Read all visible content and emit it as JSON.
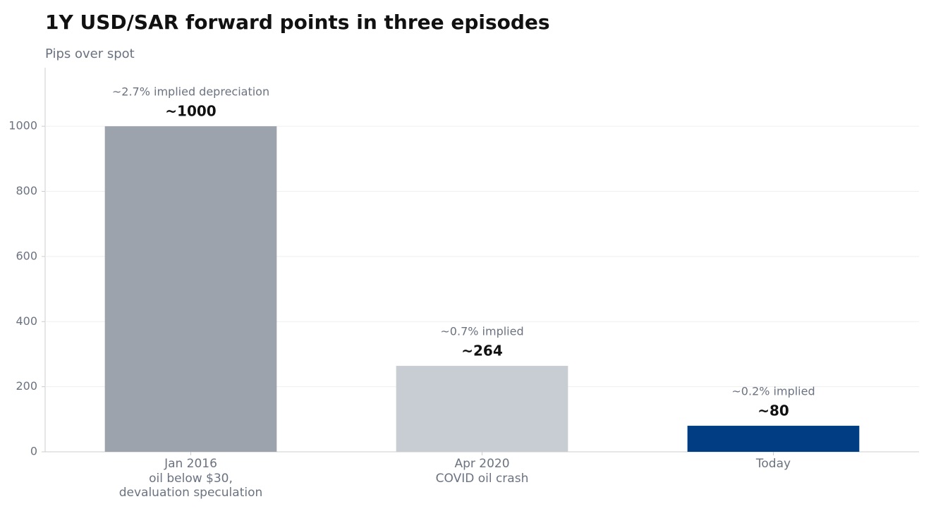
{
  "chart_data": {
    "type": "bar",
    "title": "1Y USD/SAR forward points in three episodes",
    "subtitle": "Pips over spot",
    "categories": [
      "Jan 2016\noil below $30,\ndevaluation speculation",
      "Apr 2020\nCOVID oil crash",
      "Today"
    ],
    "values": [
      1000,
      264,
      80
    ],
    "value_labels": [
      "~1000",
      "~264",
      "~80"
    ],
    "annotations": [
      "~2.7% implied depreciation",
      "~0.7% implied",
      "~0.2% implied"
    ],
    "colors": [
      "#9ca3ad",
      "#c8cdd4",
      "#003d82"
    ],
    "ylim": [
      0,
      1180
    ],
    "yticks": [
      0,
      200,
      400,
      600,
      800,
      1000
    ],
    "grid": true
  }
}
